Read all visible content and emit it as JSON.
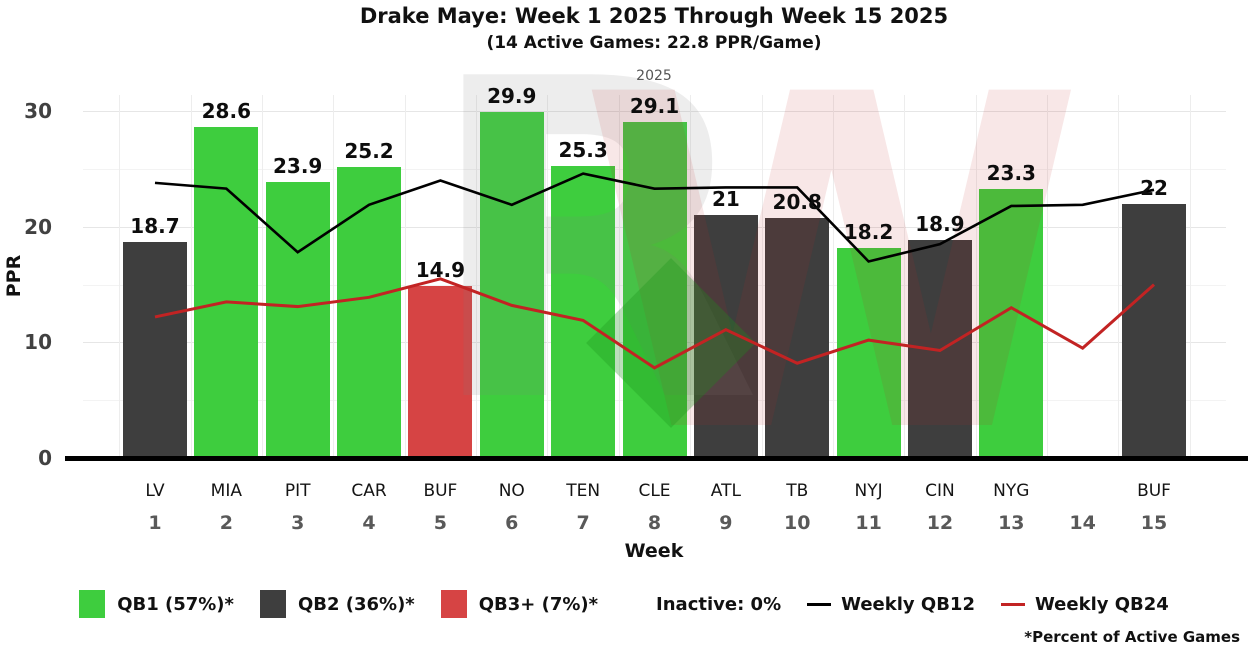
{
  "title": "Drake Maye: Week 1 2025 Through Week 15 2025",
  "subtitle": "(14 Active Games: 22.8 PPR/Game)",
  "facet_label": "2025",
  "footnote": "*Percent of Active Games",
  "watermark": {
    "letter_r": "R",
    "letter_w": "W"
  },
  "chart_data": {
    "type": "bar",
    "title": "Drake Maye: Week 1 2025 Through Week 15 2025",
    "subtitle": "(14 Active Games: 22.8 PPR/Game)",
    "facet": "2025",
    "xlabel": "Week",
    "ylabel": "PPR",
    "ylim": [
      0,
      31.4
    ],
    "yticks": [
      0,
      10,
      20,
      30
    ],
    "yticks_minor": [
      5,
      15,
      25
    ],
    "grid": true,
    "legend_position": "bottom",
    "x": [
      1,
      2,
      3,
      4,
      5,
      6,
      7,
      8,
      9,
      10,
      11,
      12,
      13,
      14,
      15
    ],
    "teams": [
      "LV",
      "MIA",
      "PIT",
      "CAR",
      "BUF",
      "NO",
      "TEN",
      "CLE",
      "ATL",
      "TB",
      "NYJ",
      "CIN",
      "NYG",
      "",
      "BUF"
    ],
    "bars": {
      "values": [
        18.7,
        28.6,
        23.9,
        25.2,
        14.9,
        29.9,
        25.3,
        29.1,
        21,
        20.8,
        18.2,
        18.9,
        23.3,
        null,
        22
      ],
      "labels": [
        "18.7",
        "28.6",
        "23.9",
        "25.2",
        "14.9",
        "29.9",
        "25.3",
        "29.1",
        "21",
        "20.8",
        "18.2",
        "18.9",
        "23.3",
        "",
        "22"
      ],
      "tiers": [
        "QB2",
        "QB1",
        "QB1",
        "QB1",
        "QB3+",
        "QB1",
        "QB1",
        "QB1",
        "QB2",
        "QB2",
        "QB1",
        "QB2",
        "QB1",
        null,
        "QB2"
      ]
    },
    "tier_colors": {
      "QB1": "#3ecd3e",
      "QB2": "#3e3e3e",
      "QB3+": "#d64444"
    },
    "series": [
      {
        "name": "Weekly QB12",
        "color": "#000000",
        "values": [
          23.8,
          23.3,
          17.8,
          21.9,
          24.0,
          21.9,
          24.6,
          23.3,
          23.4,
          23.4,
          17.0,
          18.5,
          21.8,
          21.9,
          23.2
        ]
      },
      {
        "name": "Weekly QB24",
        "color": "#c22323",
        "values": [
          12.2,
          13.5,
          13.1,
          13.9,
          15.5,
          13.2,
          11.9,
          7.8,
          11.1,
          8.2,
          10.2,
          9.3,
          13.0,
          9.5,
          15.0
        ]
      }
    ]
  },
  "legend": {
    "items": [
      {
        "type": "swatch",
        "color": "#3ecd3e",
        "label": "QB1 (57%)*"
      },
      {
        "type": "swatch",
        "color": "#3e3e3e",
        "label": "QB2 (36%)*"
      },
      {
        "type": "swatch",
        "color": "#d64444",
        "label": "QB3+ (7%)*"
      },
      {
        "type": "text",
        "label": "Inactive: 0%"
      },
      {
        "type": "line",
        "color": "#000000",
        "label": "Weekly QB12"
      },
      {
        "type": "line",
        "color": "#c22323",
        "label": "Weekly QB24"
      }
    ]
  }
}
